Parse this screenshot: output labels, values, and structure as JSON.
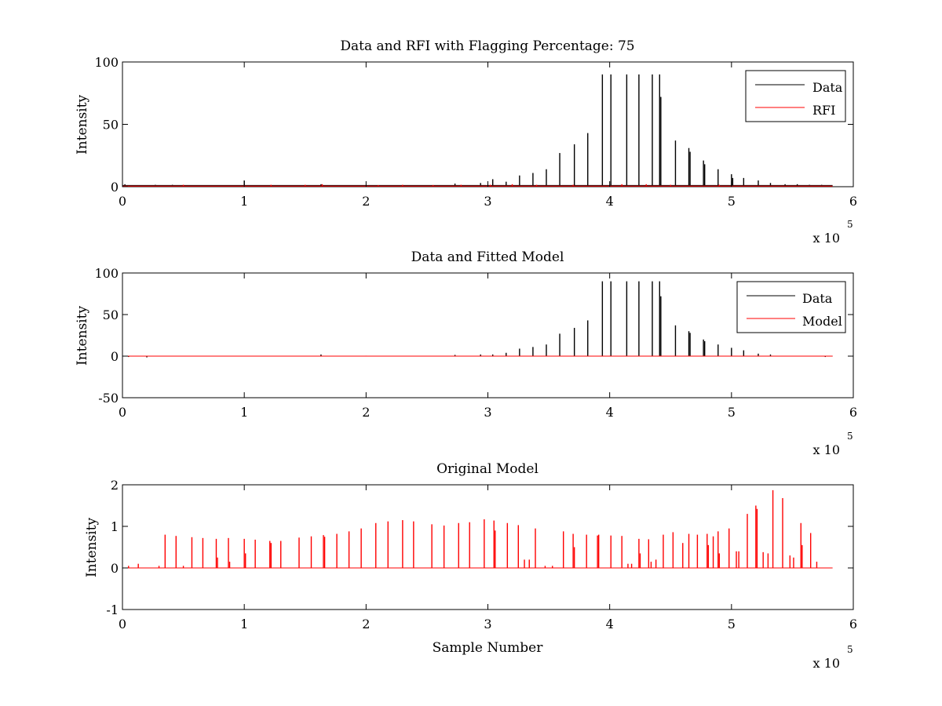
{
  "figure": {
    "background": "#ffffff",
    "axis_color": "#000000"
  },
  "chart_data": [
    {
      "type": "line",
      "title": "Data and RFI with Flagging Percentage: 75",
      "xlabel": "",
      "ylabel": "Intensity",
      "xlim": [
        0,
        6
      ],
      "ylim": [
        0,
        100
      ],
      "x_ticks": [
        "0",
        "1",
        "2",
        "3",
        "4",
        "5",
        "6"
      ],
      "y_ticks": [
        "0",
        "50",
        "100"
      ],
      "x_exponent_base": "x 10",
      "x_exponent_power": "5",
      "legend": {
        "position": "top-right",
        "entries": [
          {
            "label": "Data",
            "color": "#000000"
          },
          {
            "label": "RFI",
            "color": "#ff0000"
          }
        ]
      },
      "series": [
        {
          "name": "Data",
          "color": "#000000",
          "baseline": 1,
          "peaks": [
            [
              0.02,
              2
            ],
            [
              0.27,
              1.5
            ],
            [
              0.41,
              1.5
            ],
            [
              1.0,
              5
            ],
            [
              1.63,
              2
            ],
            [
              2.27,
              1.2
            ],
            [
              2.73,
              2.5
            ],
            [
              2.94,
              3
            ],
            [
              3.04,
              6
            ],
            [
              3.15,
              4
            ],
            [
              3.26,
              9
            ],
            [
              3.37,
              11
            ],
            [
              3.48,
              14
            ],
            [
              3.59,
              27
            ],
            [
              3.71,
              34
            ],
            [
              3.82,
              43
            ],
            [
              3.94,
              90
            ],
            [
              4.01,
              90
            ],
            [
              4.14,
              90
            ],
            [
              4.24,
              90
            ],
            [
              4.35,
              90
            ],
            [
              4.41,
              90
            ],
            [
              4.42,
              72
            ],
            [
              4.54,
              37
            ],
            [
              4.65,
              31
            ],
            [
              4.66,
              28
            ],
            [
              4.77,
              21
            ],
            [
              4.78,
              18
            ],
            [
              4.89,
              14
            ],
            [
              5.0,
              10
            ],
            [
              5.01,
              7
            ],
            [
              5.1,
              7
            ],
            [
              5.22,
              5
            ],
            [
              5.32,
              3
            ],
            [
              5.44,
              2
            ],
            [
              5.54,
              2
            ],
            [
              5.64,
              1.5
            ],
            [
              5.74,
              1.5
            ]
          ]
        },
        {
          "name": "RFI",
          "color": "#ff0000",
          "baseline": 0.5,
          "peaks": [
            [
              0.5,
              1.5
            ],
            [
              1.0,
              1.2
            ],
            [
              1.22,
              1.5
            ],
            [
              1.5,
              1.5
            ],
            [
              1.64,
              2
            ],
            [
              2.1,
              1.2
            ],
            [
              2.3,
              1.5
            ],
            [
              2.55,
              1.3
            ],
            [
              2.78,
              1.5
            ],
            [
              3.02,
              1.5
            ],
            [
              3.2,
              2
            ],
            [
              3.4,
              1.5
            ],
            [
              3.7,
              1.5
            ],
            [
              4.1,
              2
            ],
            [
              4.3,
              2
            ],
            [
              4.5,
              1.5
            ],
            [
              4.9,
              1.5
            ]
          ]
        }
      ]
    },
    {
      "type": "line",
      "title": "Data and Fitted Model",
      "xlabel": "",
      "ylabel": "Intensity",
      "xlim": [
        0,
        6
      ],
      "ylim": [
        -50,
        100
      ],
      "x_ticks": [
        "0",
        "1",
        "2",
        "3",
        "4",
        "5",
        "6"
      ],
      "y_ticks": [
        "-50",
        "0",
        "50",
        "100"
      ],
      "x_exponent_base": "x 10",
      "x_exponent_power": "5",
      "legend": {
        "position": "top-right",
        "entries": [
          {
            "label": "Data",
            "color": "#000000"
          },
          {
            "label": "Model",
            "color": "#ff0000"
          }
        ]
      },
      "series": [
        {
          "name": "Data",
          "color": "#000000",
          "baseline": 0,
          "peaks": [
            [
              0.05,
              -1
            ],
            [
              0.2,
              -1.5
            ],
            [
              1.63,
              2
            ],
            [
              2.73,
              1.5
            ],
            [
              2.94,
              2
            ],
            [
              3.04,
              2
            ],
            [
              3.15,
              4
            ],
            [
              3.26,
              9
            ],
            [
              3.37,
              11
            ],
            [
              3.48,
              14
            ],
            [
              3.59,
              27
            ],
            [
              3.71,
              34
            ],
            [
              3.82,
              43
            ],
            [
              3.94,
              90
            ],
            [
              4.01,
              90
            ],
            [
              4.14,
              90
            ],
            [
              4.24,
              90
            ],
            [
              4.35,
              90
            ],
            [
              4.41,
              90
            ],
            [
              4.42,
              72
            ],
            [
              4.54,
              37
            ],
            [
              4.65,
              30
            ],
            [
              4.66,
              28
            ],
            [
              4.77,
              20
            ],
            [
              4.78,
              18
            ],
            [
              4.89,
              14
            ],
            [
              5.0,
              10
            ],
            [
              5.1,
              7
            ],
            [
              5.22,
              3
            ],
            [
              5.32,
              2
            ],
            [
              5.77,
              -1
            ]
          ]
        },
        {
          "name": "Model",
          "color": "#ff0000",
          "baseline": 0,
          "peaks": [
            [
              0.05,
              0.5
            ],
            [
              2.0,
              0.5
            ],
            [
              4.0,
              0.5
            ],
            [
              5.77,
              -0.5
            ]
          ]
        }
      ]
    },
    {
      "type": "line",
      "title": "Original Model",
      "xlabel": "Sample Number",
      "ylabel": "Intensity",
      "xlim": [
        0,
        6
      ],
      "ylim": [
        -1,
        2
      ],
      "x_ticks": [
        "0",
        "1",
        "2",
        "3",
        "4",
        "5",
        "6"
      ],
      "y_ticks": [
        "-1",
        "0",
        "1",
        "2"
      ],
      "x_exponent_base": "x 10",
      "x_exponent_power": "5",
      "legend": null,
      "series": [
        {
          "name": "",
          "color": "#ff0000",
          "baseline": 0,
          "peaks": [
            [
              0.05,
              0.05
            ],
            [
              0.13,
              0.1
            ],
            [
              0.3,
              0.05
            ],
            [
              0.35,
              0.8
            ],
            [
              0.44,
              0.77
            ],
            [
              0.5,
              0.05
            ],
            [
              0.57,
              0.74
            ],
            [
              0.66,
              0.72
            ],
            [
              0.77,
              0.7
            ],
            [
              0.78,
              0.25
            ],
            [
              0.87,
              0.72
            ],
            [
              0.88,
              0.15
            ],
            [
              1.0,
              0.7
            ],
            [
              1.01,
              0.35
            ],
            [
              1.09,
              0.68
            ],
            [
              1.21,
              0.65
            ],
            [
              1.22,
              0.6
            ],
            [
              1.3,
              0.65
            ],
            [
              1.45,
              0.73
            ],
            [
              1.55,
              0.76
            ],
            [
              1.65,
              0.79
            ],
            [
              1.66,
              0.75
            ],
            [
              1.76,
              0.82
            ],
            [
              1.86,
              0.88
            ],
            [
              1.96,
              0.95
            ],
            [
              2.08,
              1.08
            ],
            [
              2.18,
              1.12
            ],
            [
              2.3,
              1.15
            ],
            [
              2.39,
              1.12
            ],
            [
              2.54,
              1.05
            ],
            [
              2.64,
              1.02
            ],
            [
              2.76,
              1.08
            ],
            [
              2.85,
              1.1
            ],
            [
              2.97,
              1.17
            ],
            [
              3.05,
              1.14
            ],
            [
              3.06,
              0.9
            ],
            [
              3.16,
              1.08
            ],
            [
              3.25,
              1.03
            ],
            [
              3.3,
              0.2
            ],
            [
              3.34,
              0.2
            ],
            [
              3.39,
              0.95
            ],
            [
              3.47,
              0.05
            ],
            [
              3.53,
              0.05
            ],
            [
              3.62,
              0.88
            ],
            [
              3.7,
              0.82
            ],
            [
              3.71,
              0.5
            ],
            [
              3.81,
              0.8
            ],
            [
              3.9,
              0.78
            ],
            [
              3.91,
              0.8
            ],
            [
              4.01,
              0.78
            ],
            [
              4.1,
              0.77
            ],
            [
              4.15,
              0.1
            ],
            [
              4.18,
              0.1
            ],
            [
              4.24,
              0.7
            ],
            [
              4.25,
              0.35
            ],
            [
              4.32,
              0.69
            ],
            [
              4.34,
              0.15
            ],
            [
              4.38,
              0.2
            ],
            [
              4.44,
              0.8
            ],
            [
              4.52,
              0.86
            ],
            [
              4.6,
              0.6
            ],
            [
              4.65,
              0.82
            ],
            [
              4.72,
              0.8
            ],
            [
              4.8,
              0.82
            ],
            [
              4.81,
              0.55
            ],
            [
              4.85,
              0.76
            ],
            [
              4.89,
              0.88
            ],
            [
              4.9,
              0.35
            ],
            [
              4.98,
              0.95
            ],
            [
              5.04,
              0.4
            ],
            [
              5.06,
              0.4
            ],
            [
              5.13,
              1.3
            ],
            [
              5.2,
              1.5
            ],
            [
              5.21,
              1.42
            ],
            [
              5.26,
              0.38
            ],
            [
              5.3,
              0.35
            ],
            [
              5.34,
              1.87
            ],
            [
              5.42,
              1.68
            ],
            [
              5.48,
              0.3
            ],
            [
              5.51,
              0.25
            ],
            [
              5.57,
              1.08
            ],
            [
              5.58,
              0.55
            ],
            [
              5.65,
              0.84
            ],
            [
              5.7,
              0.15
            ]
          ]
        }
      ]
    }
  ]
}
